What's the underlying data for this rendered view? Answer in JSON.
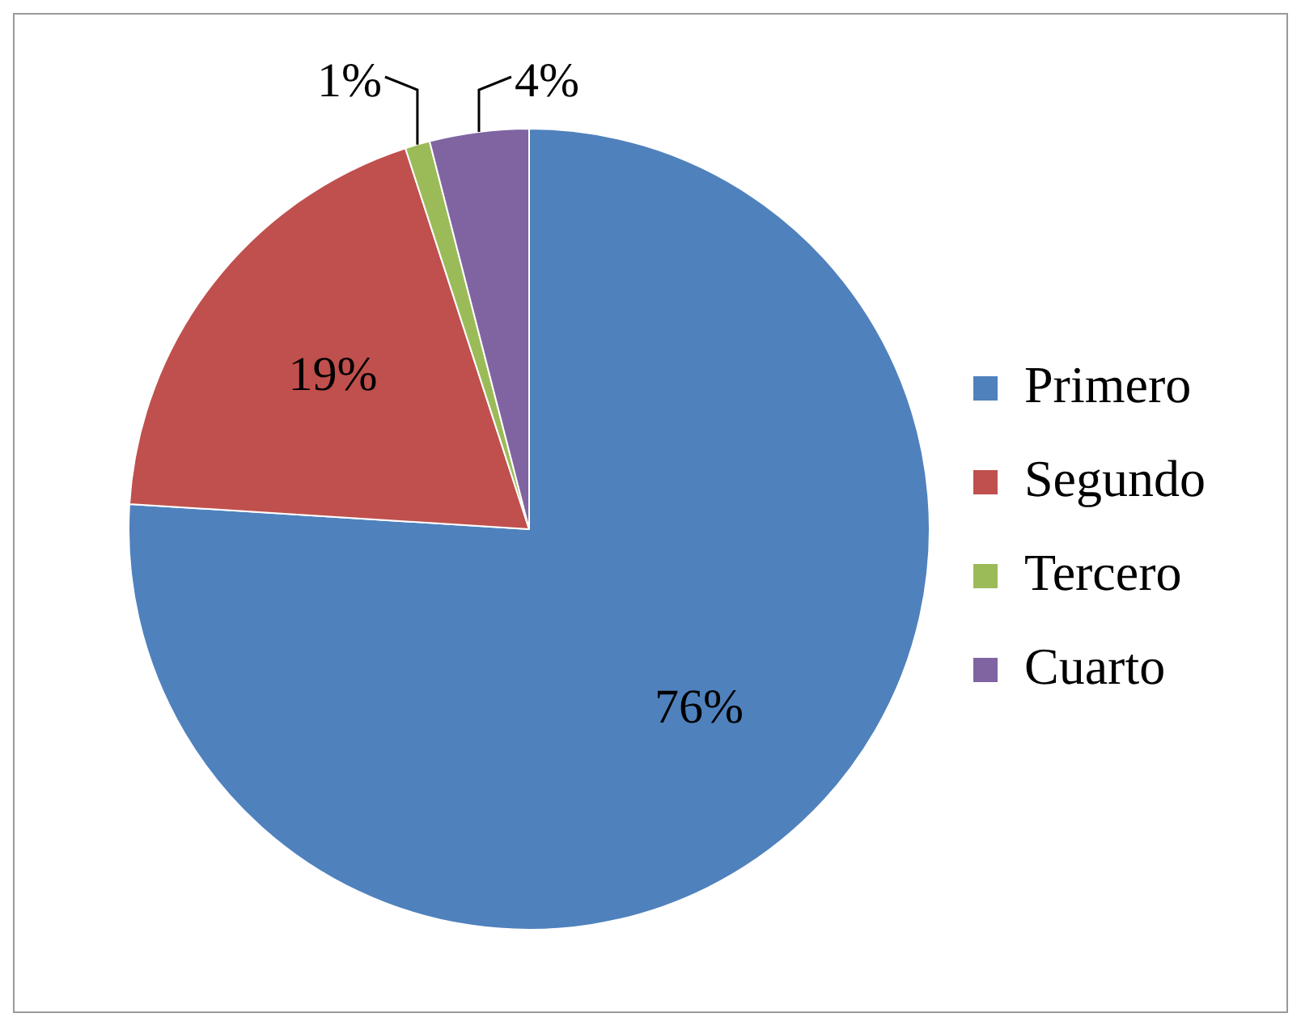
{
  "chart_data": {
    "type": "pie",
    "categories": [
      "Primero",
      "Segundo",
      "Tercero",
      "Cuarto"
    ],
    "values": [
      76,
      19,
      1,
      4
    ],
    "colors": [
      "#4f81bd",
      "#c0504d",
      "#9bbb59",
      "#8064a2"
    ],
    "value_labels": [
      "76%",
      "19%",
      "1%",
      "4%"
    ],
    "legend": "right"
  }
}
